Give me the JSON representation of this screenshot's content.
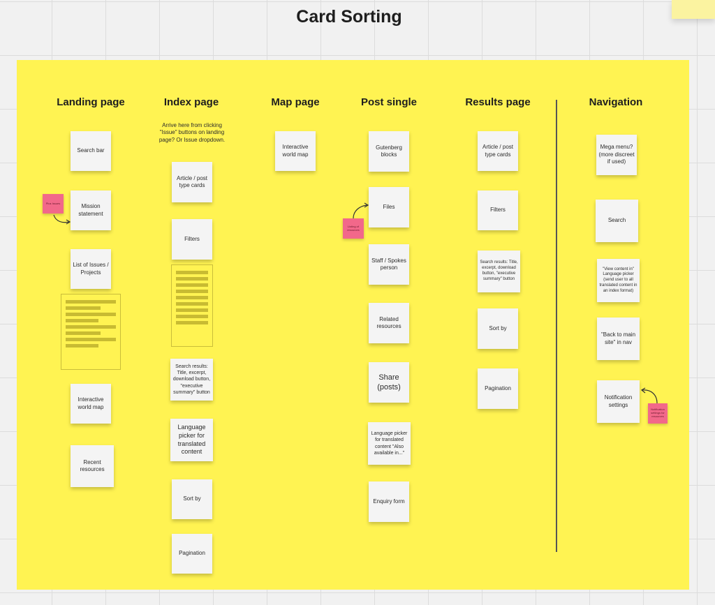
{
  "board": {
    "title": "Card Sorting"
  },
  "columns": {
    "landing": {
      "title": "Landing page",
      "notes": [
        "Search bar",
        "Mission statement",
        "List of Issues / Projects",
        "Interactive world map",
        "Recent resources"
      ],
      "pink_note": "Plus Issues"
    },
    "index": {
      "title": "Index page",
      "annotation": "Arrive here from clicking \"Issue\" buttons on landing page? Or Issue dropdown.",
      "notes": [
        "Article / post type cards",
        "Filters",
        "Search results: Title, excerpt, download button, \"executive summary\" button",
        "Language picker for translated content",
        "Sort by",
        "Pagination"
      ]
    },
    "map": {
      "title": "Map page",
      "notes": [
        "Interactive world map"
      ]
    },
    "post": {
      "title": "Post single",
      "notes": [
        "Gutenberg blocks",
        "Files",
        "Staff / Spokes person",
        "Related resources",
        "Share (posts)",
        "Language picker for translated content \"Also available in...\"",
        "Enquiry form"
      ],
      "pink_note": "Listing of resources"
    },
    "results": {
      "title": "Results page",
      "notes": [
        "Article / post type cards",
        "Filters",
        "Search results: Title, excerpt, download button, \"executive summary\" button",
        "Sort by",
        "Pagination"
      ]
    },
    "navigation": {
      "title": "Navigation",
      "notes": [
        "Mega menu? (more discreet if used)",
        "Search",
        "\"View content in\" Language picker (send user to all translated content in an index format)",
        "\"Back to main site\" in nav",
        "Notification settings"
      ],
      "pink_note": "Notification settings for resources"
    }
  },
  "colors": {
    "board": "#fff352",
    "sticky": "#f4f4f4",
    "pink": "#f2688a",
    "canvas": "#f1f1f1"
  }
}
